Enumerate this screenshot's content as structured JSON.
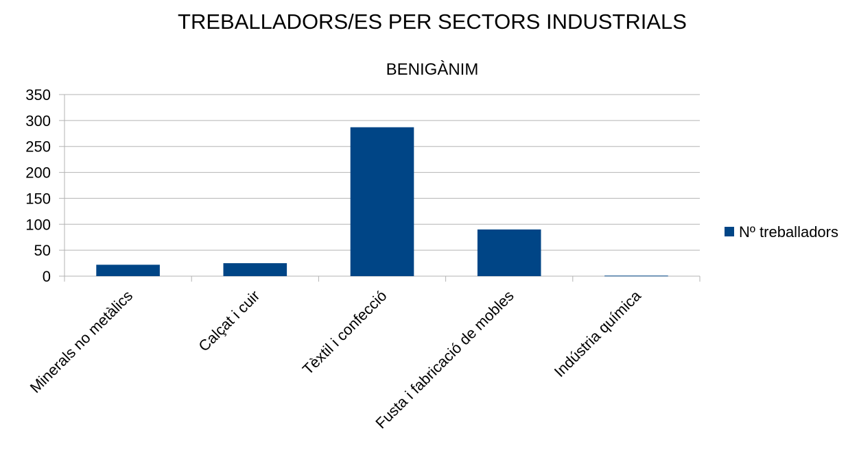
{
  "chart_data": {
    "type": "bar",
    "title": "TREBALLADORS/ES PER SECTORS INDUSTRIALS",
    "subtitle": "BENIGÀNIM",
    "categories": [
      "Minerals no metàlics",
      "Calçat i cuir",
      "Tèxtil i confecció",
      "Fusta i fabricació de mobles",
      "Indústria química"
    ],
    "series": [
      {
        "name": "Nº treballadors",
        "values": [
          22,
          25,
          287,
          90,
          1
        ],
        "color": "#004586"
      }
    ],
    "ylim": [
      0,
      350
    ],
    "yticks": [
      0,
      50,
      100,
      150,
      200,
      250,
      300,
      350
    ],
    "grid": true,
    "legend_position": "right",
    "xlabel": "",
    "ylabel": ""
  }
}
